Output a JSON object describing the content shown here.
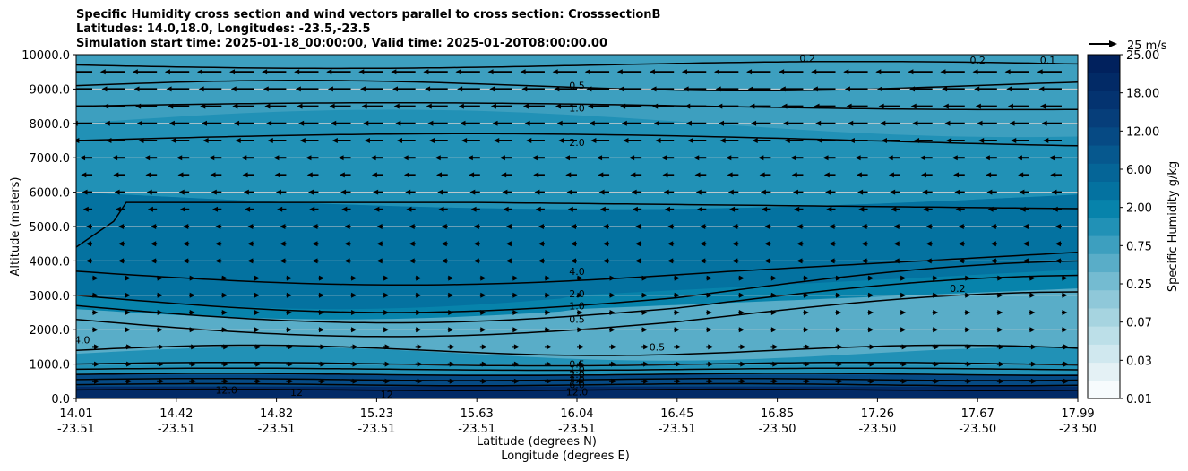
{
  "chart_data": {
    "type": "contourf",
    "title_lines": [
      "Specific Humidity cross section and wind vectors parallel to cross section: CrosssectionB",
      "Latitudes: 14.0,18.0, Longitudes: -23.5,-23.5",
      "Simulation start time: 2025-01-18_00:00:00, Valid time: 2025-01-20T08:00:00.00"
    ],
    "ylabel": "Altitude (meters)",
    "xlabel_lines": [
      "Latitude (degrees N)",
      "Longitude (degrees E)"
    ],
    "ylim": [
      0,
      10000
    ],
    "yticks": [
      "0.0",
      "1000.0",
      "2000.0",
      "3000.0",
      "4000.0",
      "5000.0",
      "6000.0",
      "7000.0",
      "8000.0",
      "9000.0",
      "10000.0"
    ],
    "grid": "horizontal",
    "xticks": [
      {
        "lat": "14.01",
        "lon": "-23.51"
      },
      {
        "lat": "14.42",
        "lon": "-23.51"
      },
      {
        "lat": "14.82",
        "lon": "-23.51"
      },
      {
        "lat": "15.23",
        "lon": "-23.51"
      },
      {
        "lat": "15.63",
        "lon": "-23.51"
      },
      {
        "lat": "16.04",
        "lon": "-23.51"
      },
      {
        "lat": "16.45",
        "lon": "-23.51"
      },
      {
        "lat": "16.85",
        "lon": "-23.50"
      },
      {
        "lat": "17.26",
        "lon": "-23.50"
      },
      {
        "lat": "17.67",
        "lon": "-23.50"
      },
      {
        "lat": "17.99",
        "lon": "-23.50"
      }
    ],
    "colorbar": {
      "label": "Specific Humidity g/kg",
      "tick_labels": [
        "0.01",
        "0.03",
        "0.07",
        "0.25",
        "0.75",
        "2.00",
        "6.00",
        "12.00",
        "18.00",
        "25.00"
      ],
      "levels": [
        0.01,
        0.02,
        0.03,
        0.05,
        0.07,
        0.1,
        0.25,
        0.5,
        0.75,
        1.0,
        2.0,
        4.0,
        6.0,
        8.0,
        12.0,
        15.0,
        18.0,
        20.0,
        25.0
      ],
      "colors": [
        "#f7fbfd",
        "#e4f1f5",
        "#d0e8ef",
        "#bcdfe8",
        "#a6d4e0",
        "#8fc8d9",
        "#74bbd1",
        "#59adc8",
        "#3d9fbf",
        "#2191b6",
        "#0783ab",
        "#0472a0",
        "#056597",
        "#06588e",
        "#064a84",
        "#063e7a",
        "#043370",
        "#022a66",
        "#01215d"
      ]
    },
    "wind_reference": "25 m/s",
    "contour_labels": [
      {
        "text": "0.5",
        "alt": 9100,
        "pos": 0.5
      },
      {
        "text": "1.0",
        "alt": 8450,
        "pos": 0.5
      },
      {
        "text": "2.0",
        "alt": 7450,
        "pos": 0.5
      },
      {
        "text": "0.2",
        "alt": 9900,
        "pos": 0.73
      },
      {
        "text": "0.2",
        "alt": 9850,
        "pos": 0.9
      },
      {
        "text": "0.1",
        "alt": 9850,
        "pos": 0.97
      },
      {
        "text": "4.0",
        "alt": 3700,
        "pos": 0.5
      },
      {
        "text": "2.0",
        "alt": 3050,
        "pos": 0.5
      },
      {
        "text": "1.0",
        "alt": 2700,
        "pos": 0.5
      },
      {
        "text": "0.5",
        "alt": 2300,
        "pos": 0.5
      },
      {
        "text": "0.5",
        "alt": 1500,
        "pos": 0.58
      },
      {
        "text": "0.2",
        "alt": 3200,
        "pos": 0.88
      },
      {
        "text": "4.0",
        "alt": 1700,
        "pos": 0.006
      },
      {
        "text": "0.5",
        "alt": 1000,
        "pos": 0.5
      },
      {
        "text": "1.0",
        "alt": 850,
        "pos": 0.5
      },
      {
        "text": "2.0",
        "alt": 700,
        "pos": 0.5
      },
      {
        "text": "4.0",
        "alt": 550,
        "pos": 0.5
      },
      {
        "text": "6.0",
        "alt": 400,
        "pos": 0.5
      },
      {
        "text": "12.0",
        "alt": 200,
        "pos": 0.5
      },
      {
        "text": "12.0",
        "alt": 250,
        "pos": 0.15
      },
      {
        "text": "12",
        "alt": 180,
        "pos": 0.22
      },
      {
        "text": "12",
        "alt": 120,
        "pos": 0.31
      }
    ]
  }
}
